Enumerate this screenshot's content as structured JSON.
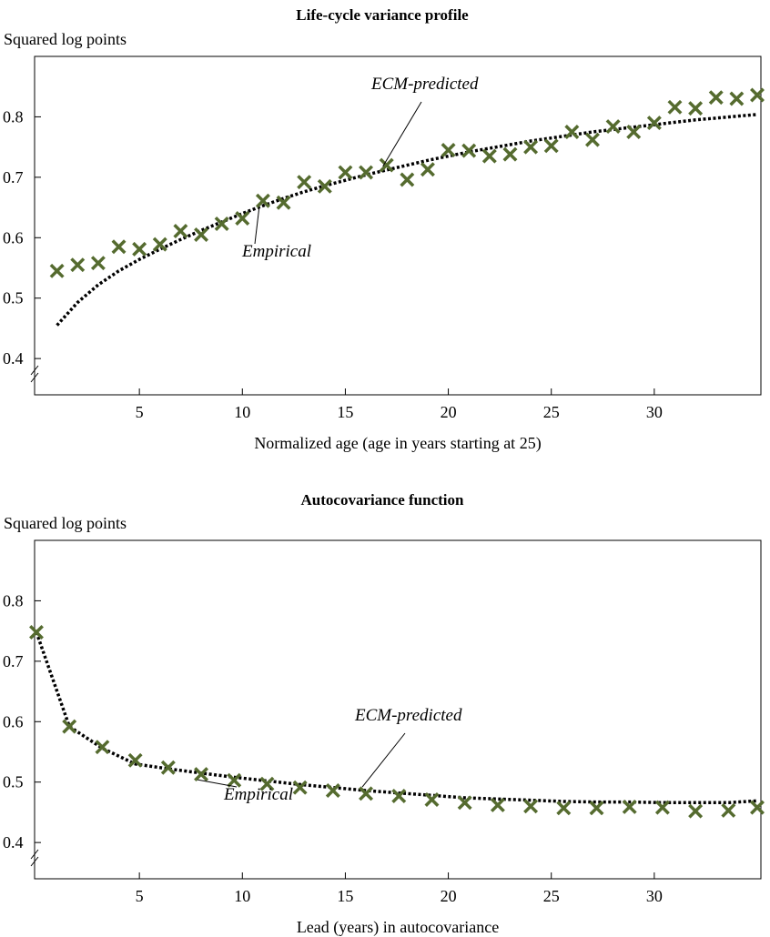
{
  "chart_data": [
    {
      "type": "scatter",
      "title": "Life-cycle variance profile",
      "ylabel": "Squared log points",
      "xlabel": "Normalized age (age in years starting at 25)",
      "xticks": [
        5,
        10,
        15,
        20,
        25,
        30
      ],
      "yticks": [
        0.4,
        0.5,
        0.6,
        0.7,
        0.8
      ],
      "xlim": [
        0,
        35
      ],
      "ylim": [
        0.34,
        0.9
      ],
      "axis_break": true,
      "grid": false,
      "colors": {
        "empirical": "#556b2f",
        "predicted": "#000000"
      },
      "annotations": [
        {
          "text": "ECM-predicted",
          "series": "predicted"
        },
        {
          "text": "Empirical",
          "series": "empirical"
        }
      ],
      "series": [
        {
          "name": "Empirical",
          "marker": "x",
          "x": [
            1,
            2,
            3,
            4,
            5,
            6,
            7,
            8,
            9,
            10,
            11,
            12,
            13,
            14,
            15,
            16,
            17,
            18,
            19,
            20,
            21,
            22,
            23,
            24,
            25,
            26,
            27,
            28,
            29,
            30,
            31,
            32,
            33,
            34,
            35
          ],
          "y": [
            0.545,
            0.555,
            0.558,
            0.585,
            0.581,
            0.589,
            0.611,
            0.605,
            0.623,
            0.632,
            0.661,
            0.658,
            0.692,
            0.685,
            0.708,
            0.708,
            0.72,
            0.696,
            0.713,
            0.745,
            0.744,
            0.735,
            0.738,
            0.75,
            0.752,
            0.775,
            0.762,
            0.784,
            0.775,
            0.79,
            0.816,
            0.814,
            0.832,
            0.83,
            0.836
          ]
        },
        {
          "name": "ECM-predicted",
          "style": "dotted",
          "x": [
            1,
            2,
            3,
            4,
            5,
            6,
            7,
            8,
            9,
            10,
            11,
            12,
            13,
            14,
            15,
            16,
            17,
            18,
            19,
            20,
            21,
            22,
            23,
            24,
            25,
            26,
            27,
            28,
            29,
            30,
            31,
            32,
            33,
            34,
            35
          ],
          "y": [
            0.455,
            0.493,
            0.522,
            0.545,
            0.564,
            0.581,
            0.597,
            0.612,
            0.626,
            0.64,
            0.653,
            0.665,
            0.676,
            0.686,
            0.695,
            0.704,
            0.712,
            0.72,
            0.728,
            0.735,
            0.742,
            0.748,
            0.754,
            0.76,
            0.765,
            0.77,
            0.775,
            0.779,
            0.783,
            0.787,
            0.791,
            0.795,
            0.798,
            0.801,
            0.804
          ]
        }
      ]
    },
    {
      "type": "scatter",
      "title": "Autocovariance function",
      "ylabel": "Squared log points",
      "xlabel": "Lead (years) in autocovariance",
      "xticks": [
        5,
        10,
        15,
        20,
        25,
        30
      ],
      "yticks": [
        0.4,
        0.5,
        0.6,
        0.7,
        0.8
      ],
      "xlim": [
        0,
        35
      ],
      "ylim": [
        0.34,
        0.9
      ],
      "axis_break": true,
      "grid": false,
      "colors": {
        "empirical": "#556b2f",
        "predicted": "#000000"
      },
      "annotations": [
        {
          "text": "ECM-predicted",
          "series": "predicted"
        },
        {
          "text": "Empirical",
          "series": "empirical"
        }
      ],
      "series": [
        {
          "name": "Empirical",
          "marker": "x",
          "x": [
            0,
            1.6,
            3.2,
            4.8,
            6.4,
            8.0,
            9.6,
            11.2,
            12.8,
            14.4,
            16.0,
            17.6,
            19.2,
            20.8,
            22.4,
            24.0,
            25.6,
            27.2,
            28.8,
            30.4,
            32.0,
            33.6,
            35.0
          ],
          "y": [
            0.748,
            0.592,
            0.558,
            0.536,
            0.524,
            0.513,
            0.503,
            0.497,
            0.491,
            0.486,
            0.481,
            0.477,
            0.471,
            0.466,
            0.462,
            0.46,
            0.457,
            0.457,
            0.459,
            0.458,
            0.452,
            0.453,
            0.458
          ]
        },
        {
          "name": "ECM-predicted",
          "style": "dotted",
          "x": [
            0,
            1.6,
            3.2,
            4.8,
            6.4,
            8.0,
            9.6,
            11.2,
            12.8,
            14.4,
            16.0,
            17.6,
            19.2,
            20.8,
            22.4,
            24.0,
            25.6,
            27.2,
            28.8,
            30.4,
            32.0,
            33.6,
            35.0
          ],
          "y": [
            0.748,
            0.592,
            0.556,
            0.53,
            0.522,
            0.515,
            0.508,
            0.502,
            0.496,
            0.491,
            0.486,
            0.482,
            0.478,
            0.474,
            0.472,
            0.47,
            0.468,
            0.467,
            0.467,
            0.466,
            0.466,
            0.466,
            0.469
          ]
        }
      ]
    }
  ]
}
